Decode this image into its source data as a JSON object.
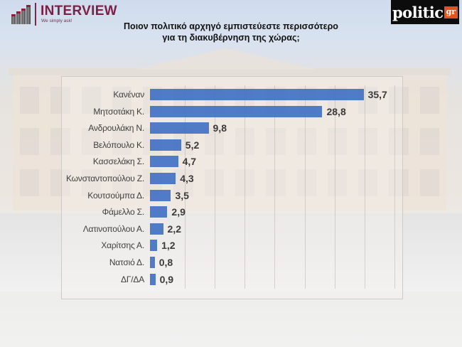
{
  "header": {
    "left_logo": {
      "brand": "INTERVIEW",
      "tagline": "We simply ask!"
    },
    "right_logo": {
      "name": "politic",
      "suffix": "gr"
    },
    "title_line1": "Ποιον πολιτικό αρχηγό εμπιστεύεστε περισσότερο",
    "title_line2": "για τη διακυβέρνηση της χώρας;"
  },
  "colors": {
    "bar": "#4472c4",
    "brand_interview": "#7b2047",
    "brand_politic_accent": "#e0541e"
  },
  "chart_data": {
    "type": "bar",
    "orientation": "horizontal",
    "title": "Ποιον πολιτικό αρχηγό εμπιστεύεστε περισσότερο για τη διακυβέρνηση της χώρας;",
    "xlabel": "",
    "ylabel": "",
    "categories": [
      "Κανέναν",
      "Μητσοτάκη Κ.",
      "Ανδρουλάκη Ν.",
      "Βελόπουλο Κ.",
      "Κασσελάκη Σ.",
      "Κωνσταντοπούλου Ζ.",
      "Κουτσούμπα Δ.",
      "Φάμελλο Σ.",
      "Λατινοπούλου Α.",
      "Χαρίτσης Α.",
      "Νατσιό Δ.",
      "ΔΓ/ΔΑ"
    ],
    "values": [
      35.7,
      28.8,
      9.8,
      5.2,
      4.7,
      4.3,
      3.5,
      2.9,
      2.2,
      1.2,
      0.8,
      0.9
    ],
    "value_labels": [
      "35,7",
      "28,8",
      "9,8",
      "5,2",
      "4,7",
      "4,3",
      "3,5",
      "2,9",
      "2,2",
      "1,2",
      "0,8",
      "0,9"
    ],
    "xlim": [
      0,
      40
    ],
    "grid": {
      "vertical": true,
      "interval": 5
    },
    "legend": "none",
    "axis_ticks_visible": false
  }
}
